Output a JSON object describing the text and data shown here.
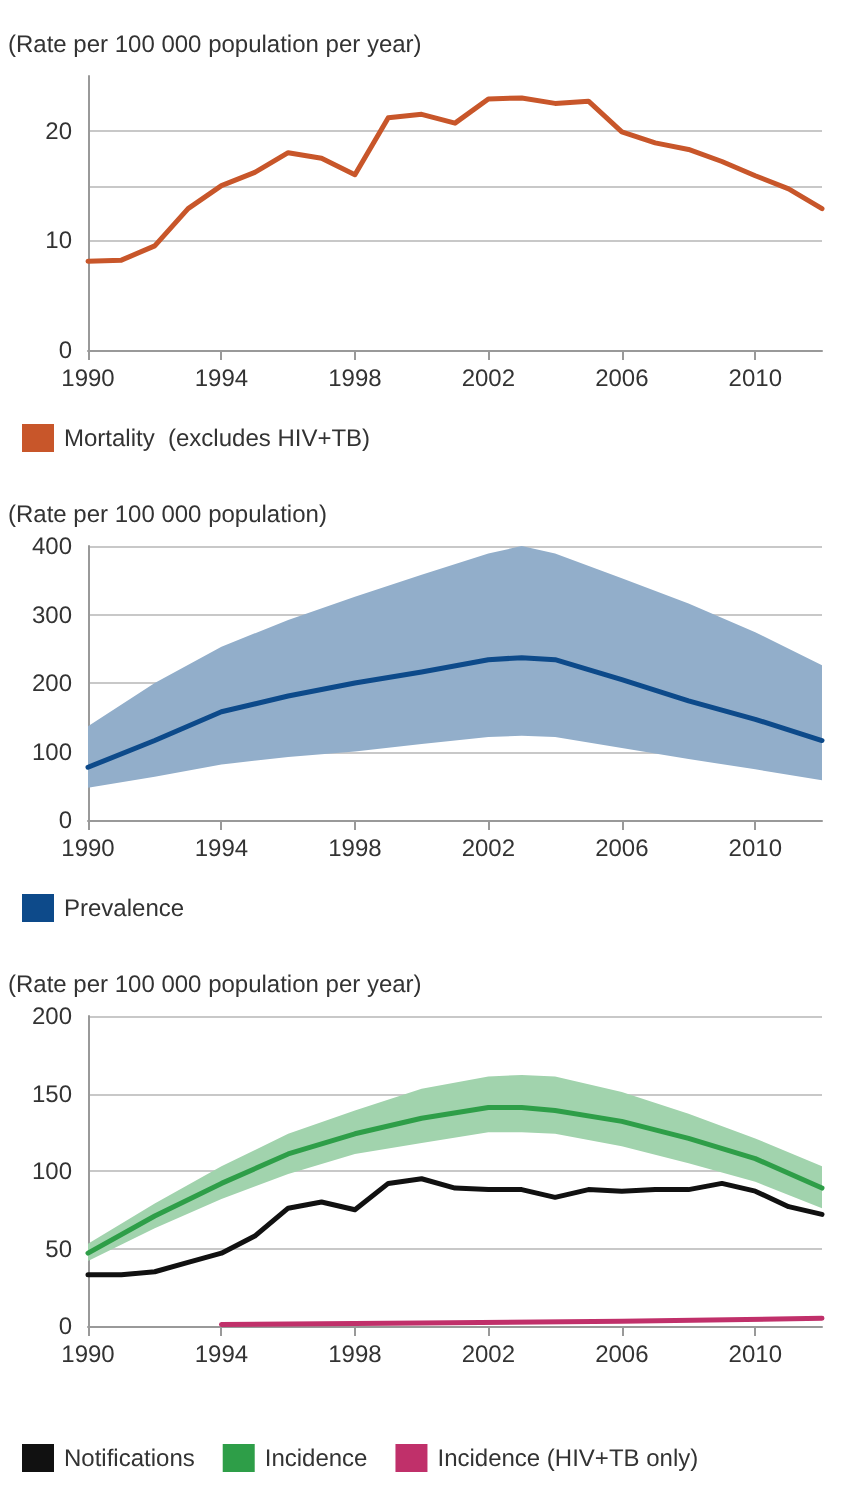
{
  "chart_data": [
    {
      "type": "line",
      "ylabel": "(Rate per 100 000 population per year)",
      "xlim": [
        1990,
        2012
      ],
      "xticks": [
        1990,
        1994,
        1998,
        2002,
        2006,
        2010
      ],
      "ylim": [
        0,
        25
      ],
      "yticks": [
        0,
        10,
        {
          "value": 15,
          "label": null
        },
        20
      ],
      "grid": "y",
      "legend": "bottom",
      "marker": "none",
      "series": [
        {
          "name": "Mortality  (excludes HIV+TB)",
          "color": "#c8562a",
          "x": [
            1990,
            1991,
            1992,
            1993,
            1994,
            1995,
            1996,
            1997,
            1998,
            1999,
            2000,
            2001,
            2002,
            2003,
            2004,
            2005,
            2006,
            2007,
            2008,
            2009,
            2010,
            2011,
            2012
          ],
          "values": [
            8.1,
            8.2,
            9.5,
            12.9,
            15,
            16.2,
            18,
            17.5,
            16,
            21.2,
            21.5,
            20.7,
            22.9,
            23,
            22.5,
            22.7,
            19.9,
            18.9,
            18.3,
            17.2,
            15.9,
            14.7,
            12.9
          ]
        }
      ]
    },
    {
      "type": "line",
      "ylabel": "(Rate per 100 000 population)",
      "xlim": [
        1990,
        2012
      ],
      "xticks": [
        1990,
        1994,
        1998,
        2002,
        2006,
        2010
      ],
      "ylim": [
        0,
        400
      ],
      "yticks": [
        0,
        100,
        200,
        300,
        400
      ],
      "grid": "y",
      "legend": "bottom",
      "marker": "none",
      "series": [
        {
          "name": "Prevalence",
          "color": "#0d4a8a",
          "x": [
            1990,
            1992,
            1994,
            1996,
            1998,
            2000,
            2002,
            2003,
            2004,
            2006,
            2008,
            2010,
            2012
          ],
          "values": [
            77,
            116,
            158,
            181,
            200,
            216,
            234,
            237,
            234,
            205,
            174,
            147,
            116
          ],
          "lower": [
            47,
            63,
            81,
            92,
            100,
            111,
            121,
            123,
            121,
            105,
            89,
            74,
            58
          ],
          "upper": [
            137,
            200,
            253,
            292,
            326,
            358,
            389,
            400,
            389,
            353,
            316,
            274,
            226
          ]
        }
      ]
    },
    {
      "type": "line",
      "ylabel": "(Rate per 100 000 population per year)",
      "xlim": [
        1990,
        2012
      ],
      "xticks": [
        1990,
        1994,
        1998,
        2002,
        2006,
        2010
      ],
      "ylim": [
        0,
        200
      ],
      "yticks": [
        0,
        50,
        100,
        150,
        200
      ],
      "grid": "y",
      "legend": "bottom",
      "marker": "none",
      "series": [
        {
          "name": "Notifications",
          "color": "#111111",
          "x": [
            1990,
            1991,
            1992,
            1993,
            1994,
            1995,
            1996,
            1997,
            1998,
            1999,
            2000,
            2001,
            2002,
            2003,
            2004,
            2005,
            2006,
            2007,
            2008,
            2009,
            2010,
            2011,
            2012
          ],
          "values": [
            33,
            33,
            35,
            41,
            47,
            58,
            76,
            80,
            75,
            92,
            95,
            89,
            88,
            88,
            83,
            88,
            87,
            88,
            88,
            92,
            87,
            77,
            72
          ]
        },
        {
          "name": "Incidence",
          "color": "#2e9e48",
          "x": [
            1990,
            1992,
            1994,
            1996,
            1998,
            2000,
            2002,
            2003,
            2004,
            2006,
            2008,
            2010,
            2012
          ],
          "values": [
            47,
            71,
            92,
            111,
            124,
            134,
            141,
            141,
            139,
            132,
            121,
            108,
            89
          ],
          "lower": [
            42,
            63,
            82,
            98,
            111,
            118,
            125,
            125,
            124,
            116,
            105,
            93,
            76
          ],
          "upper": [
            53,
            79,
            103,
            124,
            139,
            153,
            161,
            162,
            161,
            151,
            137,
            121,
            103
          ]
        },
        {
          "name": "Incidence (HIV+TB only)",
          "color": "#c0306a",
          "x": [
            1994,
            2000,
            2006,
            2012
          ],
          "values": [
            1,
            2,
            3,
            5
          ]
        }
      ]
    }
  ]
}
